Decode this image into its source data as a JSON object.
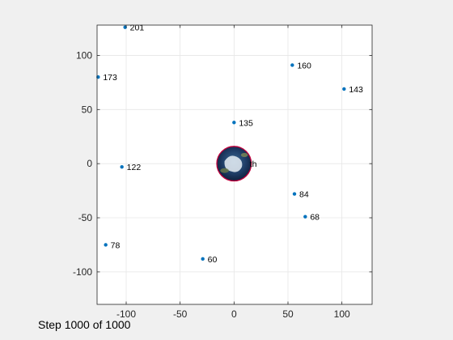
{
  "figure": {
    "status_text": "Step 1000 of 1000",
    "background": "#f0f0f0",
    "axes_background": "#ffffff",
    "marker_color": "#0072bd"
  },
  "chart_data": {
    "type": "scatter",
    "title": "",
    "xlabel": "",
    "ylabel": "",
    "xlim": [
      -127,
      128
    ],
    "ylim": [
      -130,
      128
    ],
    "xticks": [
      -100,
      -50,
      0,
      50,
      100
    ],
    "yticks": [
      -100,
      -50,
      0,
      50,
      100
    ],
    "grid": true,
    "central_body": {
      "x": 0,
      "y": 0,
      "radius": 16,
      "label_fragment": "th"
    },
    "points": [
      {
        "label": "201",
        "x": -101,
        "y": 126
      },
      {
        "label": "173",
        "x": -126,
        "y": 80
      },
      {
        "label": "160",
        "x": 54,
        "y": 91
      },
      {
        "label": "143",
        "x": 102,
        "y": 69
      },
      {
        "label": "135",
        "x": 0,
        "y": 38
      },
      {
        "label": "122",
        "x": -104,
        "y": -3
      },
      {
        "label": "84",
        "x": 56,
        "y": -28
      },
      {
        "label": "68",
        "x": 66,
        "y": -49
      },
      {
        "label": "78",
        "x": -119,
        "y": -75
      },
      {
        "label": "60",
        "x": -29,
        "y": -88
      }
    ]
  }
}
